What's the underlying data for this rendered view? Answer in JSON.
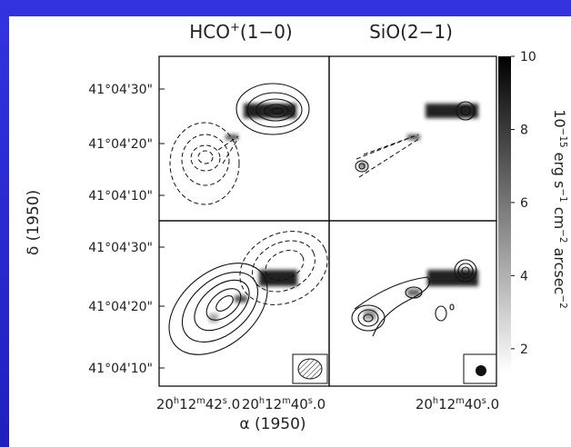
{
  "panel_titles": [
    [
      "HCO",
      "+",
      "(1−0)"
    ],
    [
      "SiO(2−1)"
    ]
  ],
  "y_axis": {
    "label": "δ (1950)",
    "tick_labels": [
      "41°04'30\"",
      "41°04'20\"",
      "41°04'10\""
    ]
  },
  "x_axis": {
    "label": "α (1950)",
    "tick_labels": [
      [
        "20",
        "h",
        "12",
        "m",
        "42",
        "s",
        ".0"
      ],
      [
        "20",
        "h",
        "12",
        "m",
        "40",
        "s",
        ".0"
      ],
      [
        "20",
        "h",
        "12",
        "m",
        "40",
        "s",
        ".0"
      ]
    ]
  },
  "colorbar": {
    "label": [
      "10",
      "−15",
      " erg s",
      "−1",
      " cm",
      "−2",
      " arcsec",
      "−2"
    ],
    "lim": [
      1.35,
      10
    ],
    "ticks": [
      2,
      4,
      6,
      8,
      10
    ]
  }
}
